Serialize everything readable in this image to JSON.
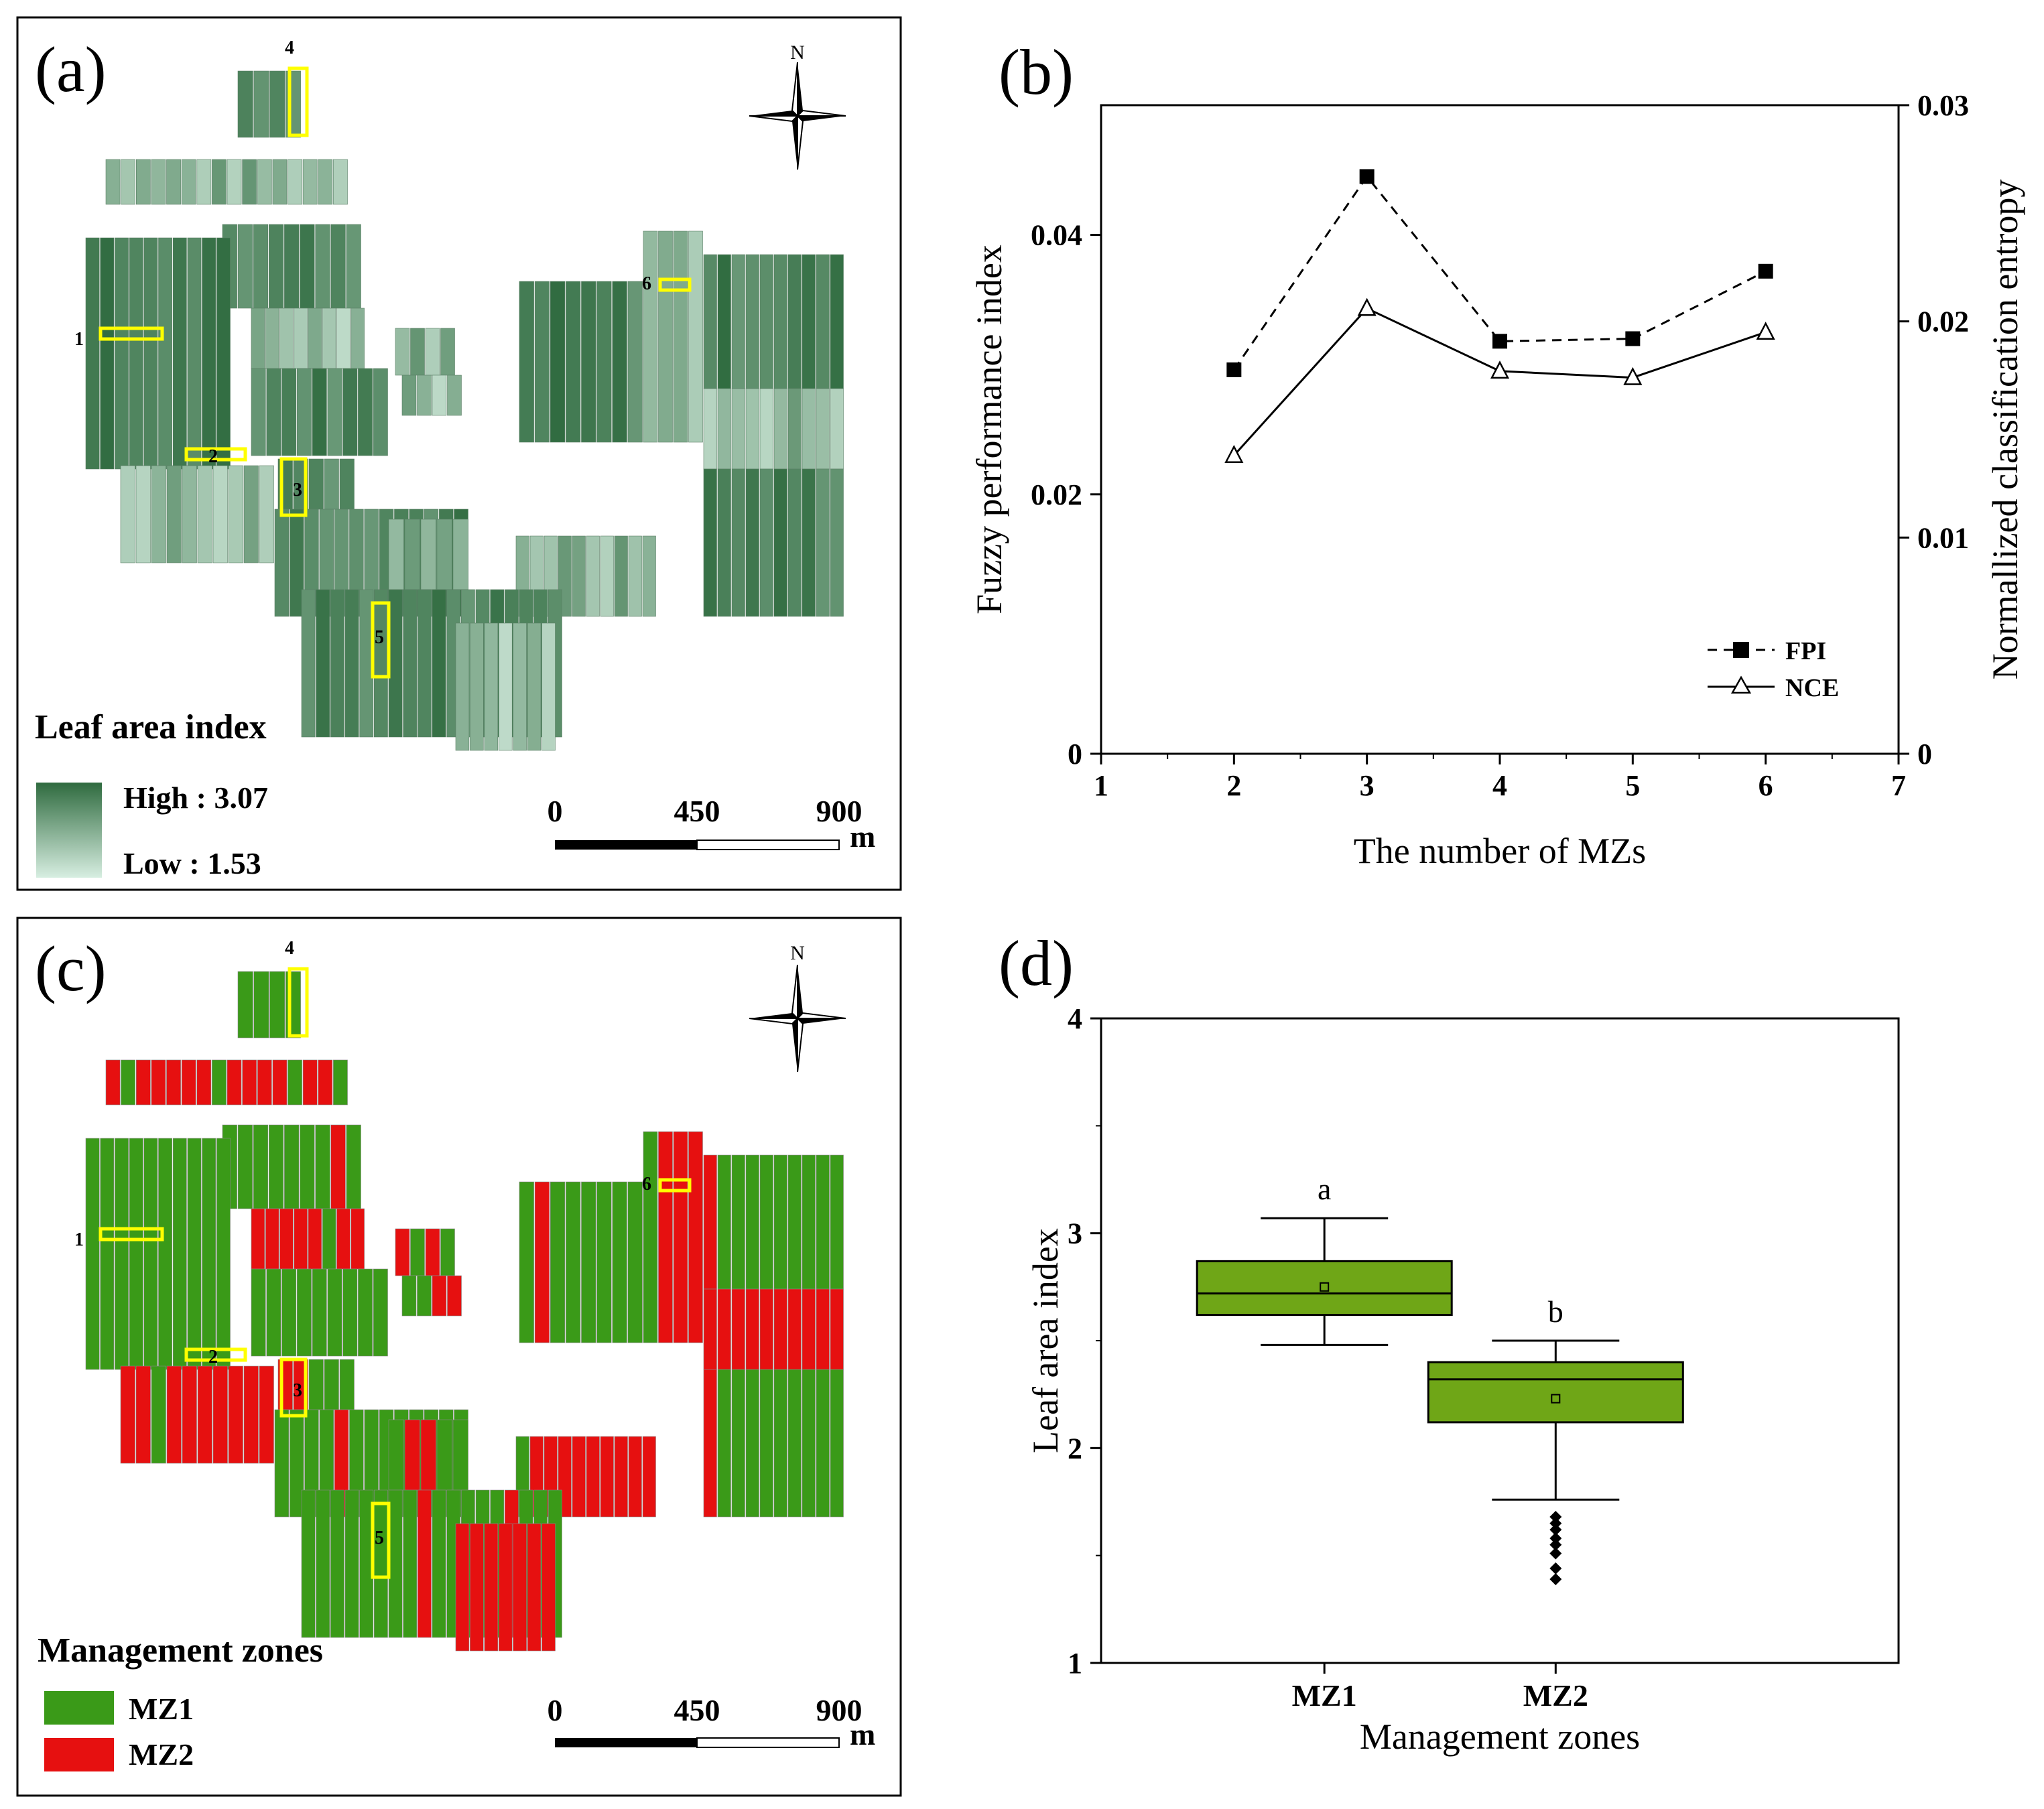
{
  "figure": {
    "panel_a": {
      "label": "(a)",
      "north": "N",
      "legend_title": "Leaf area index",
      "legend_high": "High : 3.07",
      "legend_low": "Low : 1.53",
      "scale_ticks": [
        "0",
        "450",
        "900"
      ],
      "scale_unit": "m",
      "site_labels": [
        "1",
        "2",
        "3",
        "4",
        "5",
        "6"
      ]
    },
    "panel_c": {
      "label": "(c)",
      "north": "N",
      "legend_title": "Management zones",
      "legend_items": [
        "MZ1",
        "MZ2"
      ],
      "scale_ticks": [
        "0",
        "450",
        "900"
      ],
      "scale_unit": "m",
      "site_labels": [
        "1",
        "2",
        "3",
        "4",
        "5",
        "6"
      ]
    }
  },
  "colors": {
    "lai_high": "#2f6b3f",
    "lai_low": "#d7eee1",
    "mz1": "#3a9a18",
    "mz2": "#e61010",
    "highlight": "#ffff00",
    "box_fill": "#6fa617"
  },
  "chart_data": [
    {
      "id": "b",
      "type": "line",
      "panel_label": "(b)",
      "title": "",
      "xlabel": "The number of MZs",
      "ylabel": "Fuzzy performance index",
      "y2label": "Normallized classification entropy",
      "x": [
        2,
        3,
        4,
        5,
        6
      ],
      "xlim": [
        1,
        7
      ],
      "xticks": [
        "1",
        "2",
        "3",
        "4",
        "5",
        "6",
        "7"
      ],
      "ylim": [
        0,
        0.05
      ],
      "yticks": [
        "0",
        "0.02",
        "0.04"
      ],
      "y2lim": [
        0,
        0.03
      ],
      "y2ticks": [
        "0",
        "0.01",
        "0.02",
        "0.03"
      ],
      "series": [
        {
          "name": "FPI",
          "axis": "left",
          "style": "dashed",
          "marker": "square",
          "values": [
            0.0296,
            0.0445,
            0.0318,
            0.032,
            0.0372
          ]
        },
        {
          "name": "NCE",
          "axis": "right",
          "style": "solid",
          "marker": "triangle-open",
          "values": [
            0.0138,
            0.0206,
            0.0177,
            0.0174,
            0.0195
          ]
        }
      ],
      "legend_position": "bottom-right"
    },
    {
      "id": "d",
      "type": "box",
      "panel_label": "(d)",
      "title": "",
      "xlabel": "Management zones",
      "ylabel": "Leaf area index",
      "categories": [
        "MZ1",
        "MZ2"
      ],
      "ylim": [
        1,
        4
      ],
      "yticks": [
        "1",
        "2",
        "3",
        "4"
      ],
      "boxes": [
        {
          "name": "MZ1",
          "whisker_low": 2.48,
          "q1": 2.62,
          "median": 2.72,
          "q3": 2.87,
          "whisker_high": 3.07,
          "mean": 2.75,
          "outliers": [],
          "letter": "a"
        },
        {
          "name": "MZ2",
          "whisker_low": 1.76,
          "q1": 2.12,
          "median": 2.32,
          "q3": 2.4,
          "whisker_high": 2.5,
          "mean": 2.23,
          "outliers": [
            1.68,
            1.65,
            1.62,
            1.58,
            1.55,
            1.51,
            1.44,
            1.39
          ],
          "letter": "b"
        }
      ]
    }
  ]
}
